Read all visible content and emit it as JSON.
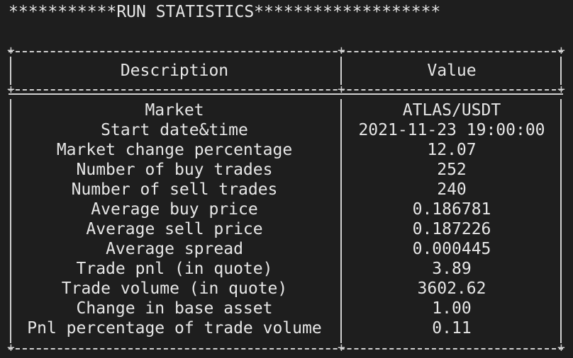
{
  "banner": "***********RUN STATISTICS*******************",
  "table": {
    "headers": {
      "description": "Description",
      "value": "Value"
    },
    "rows": [
      {
        "description": "Market",
        "value": "ATLAS/USDT"
      },
      {
        "description": "Start date&time",
        "value": "2021-11-23 19:00:00"
      },
      {
        "description": "Market change percentage",
        "value": "12.07"
      },
      {
        "description": "Number of buy trades",
        "value": "252"
      },
      {
        "description": "Number of sell trades",
        "value": "240"
      },
      {
        "description": "Average buy price",
        "value": "0.186781"
      },
      {
        "description": "Average sell price",
        "value": "0.187226"
      },
      {
        "description": "Average spread",
        "value": "0.000445"
      },
      {
        "description": "Trade pnl (in quote)",
        "value": "3.89"
      },
      {
        "description": "Trade volume (in quote)",
        "value": "3602.62"
      },
      {
        "description": "Change in base asset",
        "value": "1.00"
      },
      {
        "description": "Pnl percentage of trade volume",
        "value": "0.11"
      }
    ]
  },
  "colors": {
    "background": "#1e1e1e",
    "text": "#e6e6e6",
    "border": "#d0d0d0"
  }
}
